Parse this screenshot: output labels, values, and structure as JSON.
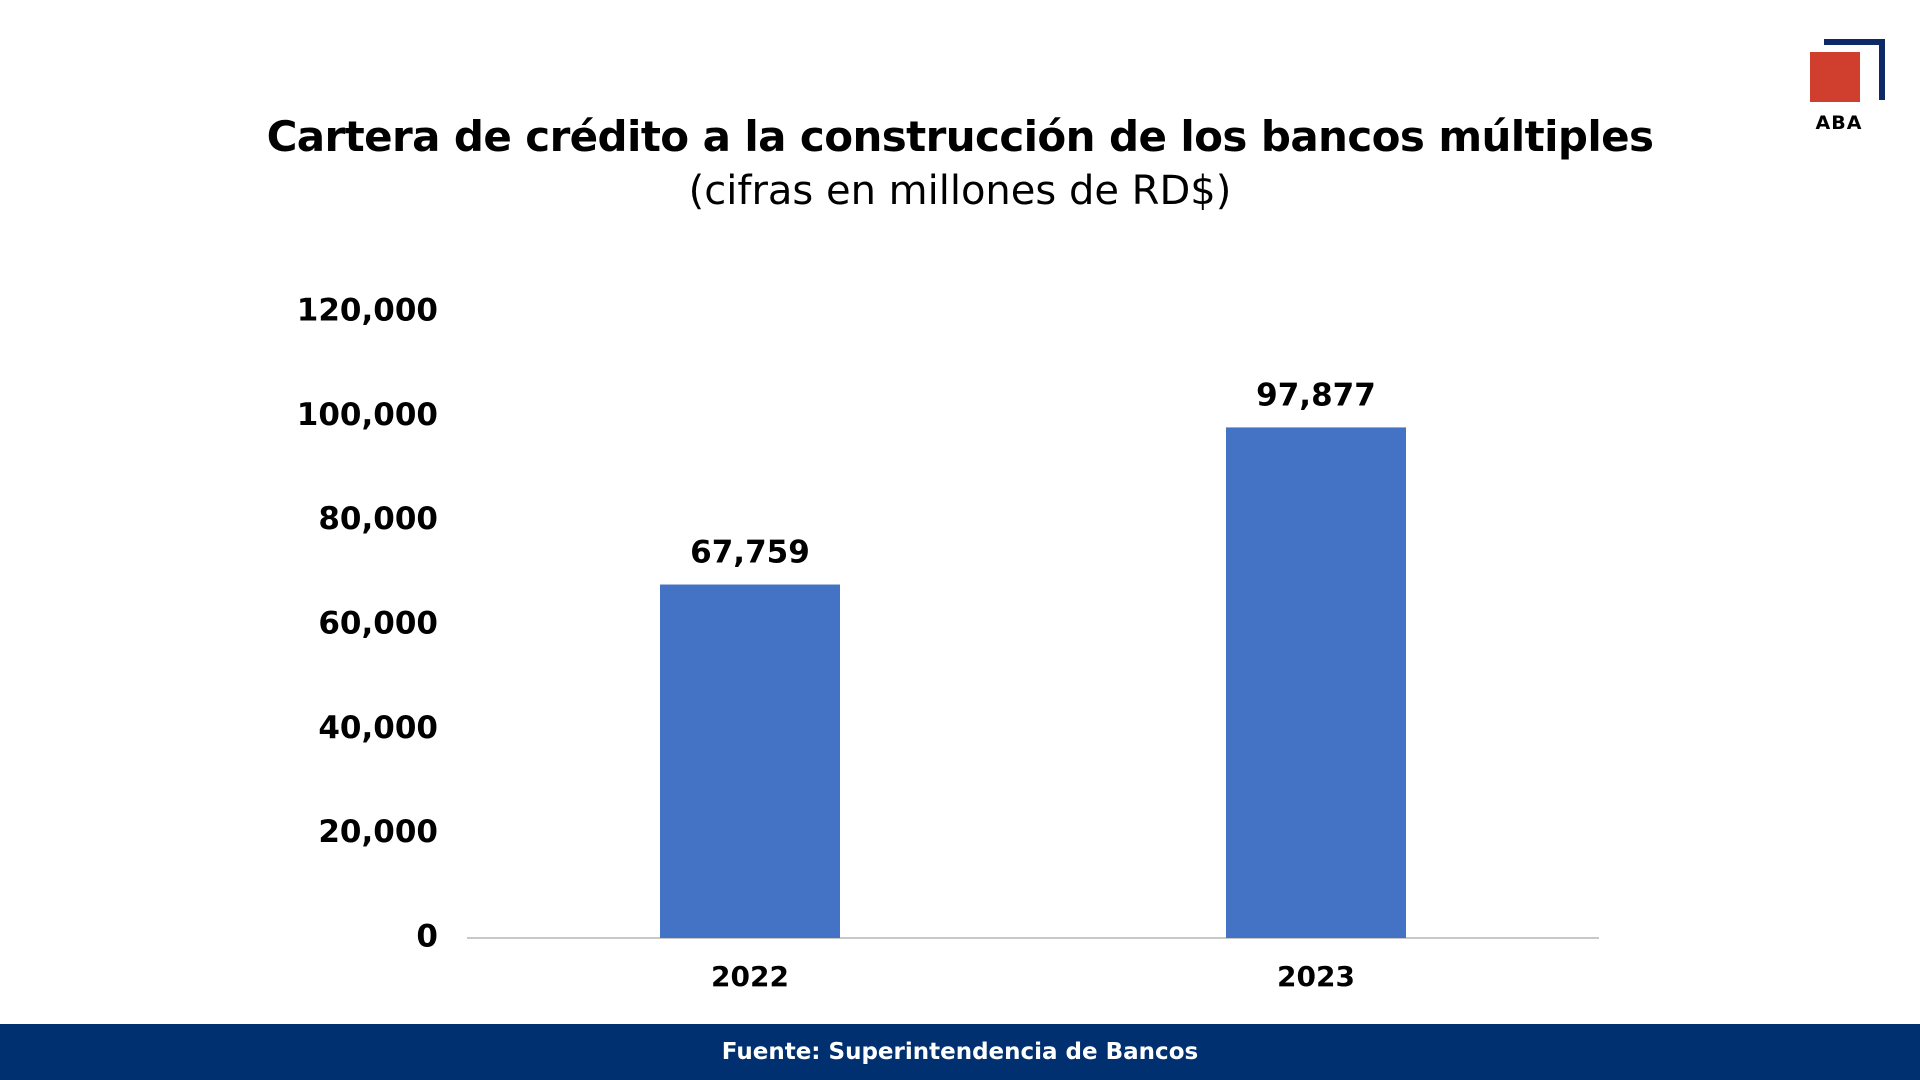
{
  "brand": {
    "logo_text": "ABA",
    "square_color": "#d03f2e",
    "bracket_color": "#0e2a66"
  },
  "footer": {
    "text": "Fuente: Superintendencia de Bancos",
    "color": "#003070"
  },
  "chart_data": {
    "type": "bar",
    "title": "Cartera de crédito a la construcción de los bancos múltiples",
    "subtitle": "(cifras en millones de RD$)",
    "categories": [
      "2022",
      "2023"
    ],
    "values": [
      67759,
      97877
    ],
    "value_labels": [
      "67,759",
      "97,877"
    ],
    "ylim": [
      0,
      120000
    ],
    "yticks": [
      0,
      20000,
      40000,
      60000,
      80000,
      100000,
      120000
    ],
    "ytick_labels": [
      "0",
      "20,000",
      "40,000",
      "60,000",
      "80,000",
      "100,000",
      "120,000"
    ],
    "bar_color": "#4472c4",
    "axis_color": "#c8c8c8",
    "grid": false,
    "legend": "none"
  }
}
